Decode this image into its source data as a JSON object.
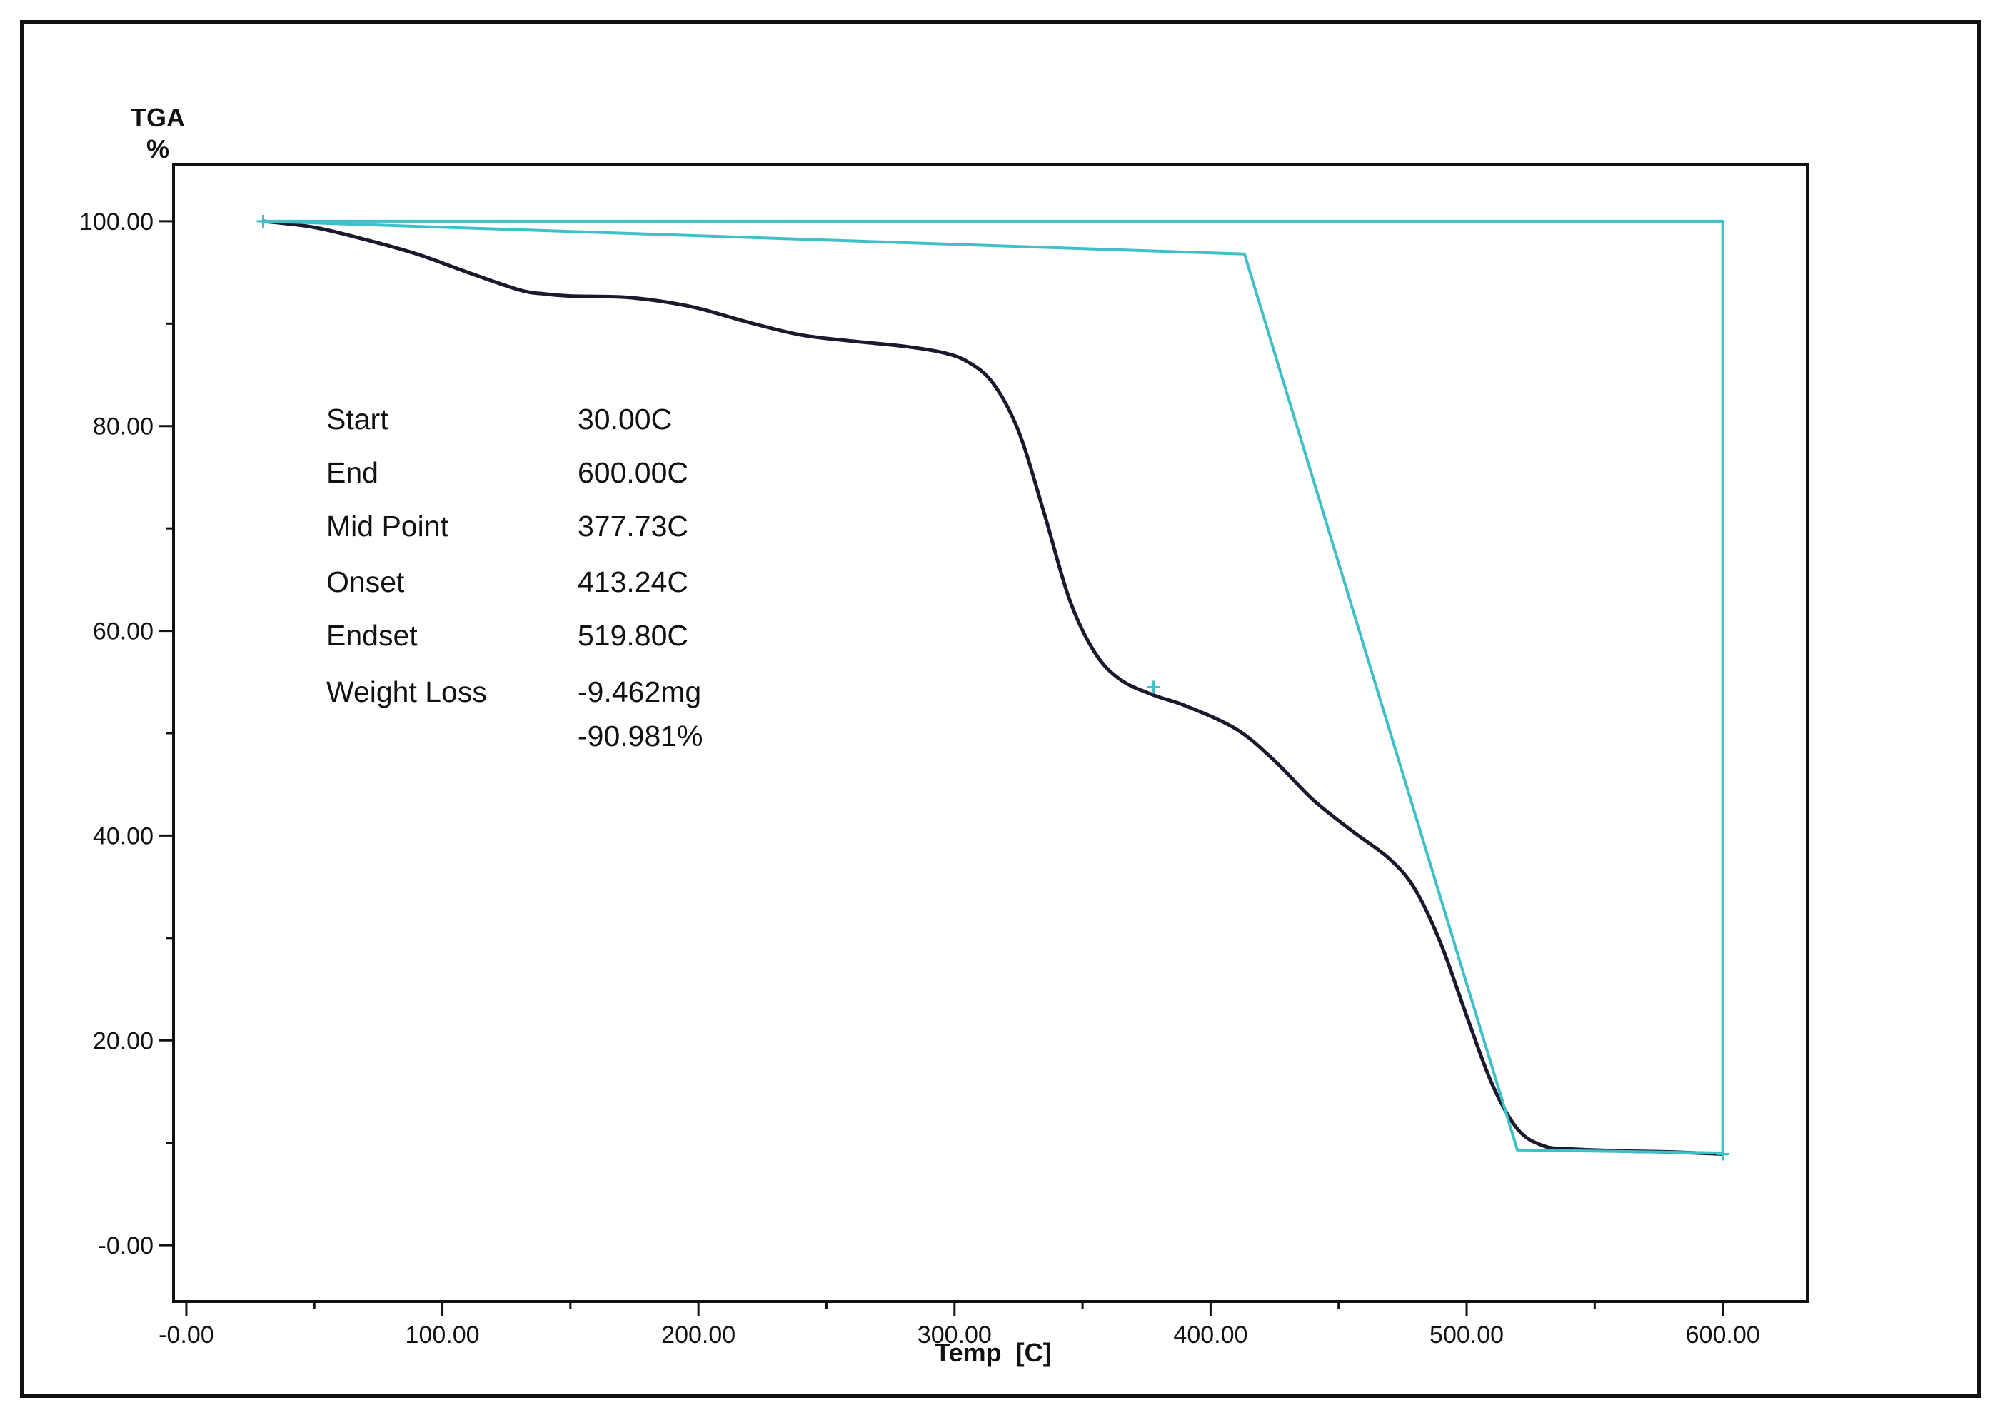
{
  "chart_data": {
    "type": "line",
    "title": "",
    "ylabel_top": "TGA",
    "ylabel_unit": "%",
    "xlabel": "Temp  [C]",
    "xlim": [
      -5,
      633
    ],
    "ylim": [
      -5.5,
      105.5
    ],
    "x_ticks": [
      0,
      100,
      200,
      300,
      400,
      500,
      600
    ],
    "x_tick_labels": [
      "-0.00",
      "100.00",
      "200.00",
      "300.00",
      "400.00",
      "500.00",
      "600.00"
    ],
    "y_ticks": [
      0,
      20,
      40,
      60,
      80,
      100
    ],
    "y_tick_labels": [
      "-0.00",
      "20.00",
      "40.00",
      "60.00",
      "80.00",
      "100.00"
    ],
    "grid": false,
    "series": [
      {
        "name": "",
        "color": "#1a1a2e",
        "x": [
          30,
          50,
          70,
          90,
          110,
          130,
          140,
          150,
          170,
          185,
          200,
          220,
          240,
          260,
          280,
          295,
          305,
          315,
          325,
          335,
          345,
          355,
          365,
          378,
          390,
          410,
          425,
          440,
          455,
          470,
          480,
          490,
          500,
          510,
          520,
          530,
          540,
          560,
          580,
          600
        ],
        "y": [
          100,
          99.4,
          98.2,
          96.8,
          95,
          93.3,
          92.9,
          92.7,
          92.6,
          92.2,
          91.5,
          90.1,
          88.9,
          88.3,
          87.8,
          87.2,
          86.3,
          84.2,
          79.5,
          71.5,
          63,
          57.8,
          55.2,
          53.7,
          52.7,
          50.4,
          47.3,
          43.5,
          40.5,
          37.7,
          34.7,
          29.4,
          22.4,
          15.7,
          11.3,
          9.7,
          9.4,
          9.2,
          9.1,
          8.9
        ]
      },
      {
        "name": "",
        "color": "#3fbfc8",
        "x": [
          30,
          413.24,
          519.8,
          600,
          600,
          30
        ],
        "y": [
          100,
          96.8,
          9.3,
          9.0,
          100,
          100
        ]
      }
    ],
    "markers": [
      {
        "x": 30,
        "y": 100
      },
      {
        "x": 377.73,
        "y": 54.5
      },
      {
        "x": 600,
        "y": 8.9
      }
    ],
    "info_table": [
      {
        "label": "Start",
        "value": "30.00C"
      },
      {
        "label": "End",
        "value": "600.00C"
      },
      {
        "label": "Mid Point",
        "value": "377.73C"
      },
      {
        "label": "Onset",
        "value": "413.24C"
      },
      {
        "label": "Endset",
        "value": "519.80C"
      },
      {
        "label": "Weight Loss",
        "value": "-9.462mg"
      },
      {
        "label": "",
        "value": "-90.981%"
      }
    ]
  }
}
